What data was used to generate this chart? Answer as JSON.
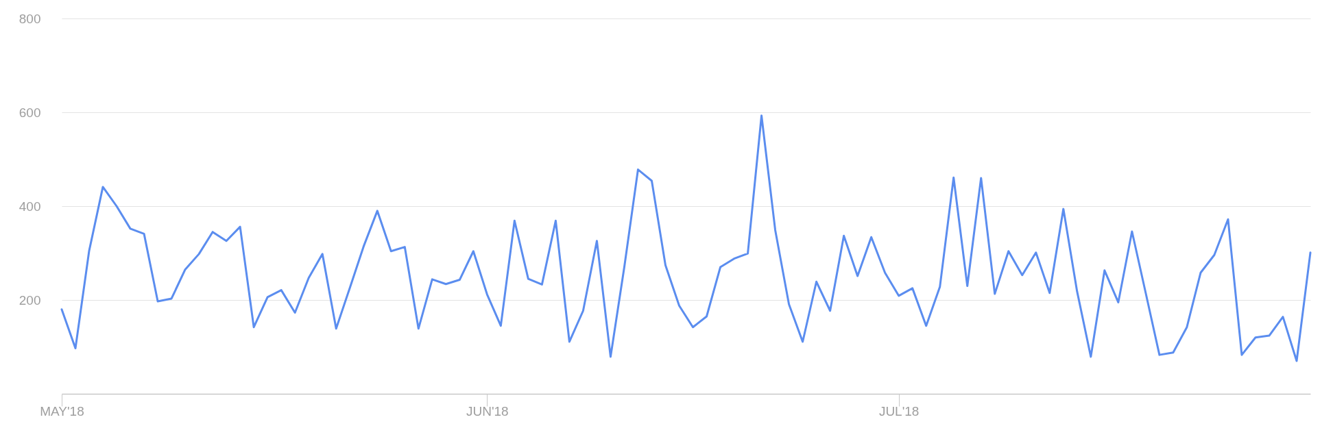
{
  "chart_data": {
    "type": "line",
    "x": [
      "2018-05-01",
      "2018-05-02",
      "2018-05-03",
      "2018-05-04",
      "2018-05-05",
      "2018-05-06",
      "2018-05-07",
      "2018-05-08",
      "2018-05-09",
      "2018-05-10",
      "2018-05-11",
      "2018-05-12",
      "2018-05-13",
      "2018-05-14",
      "2018-05-15",
      "2018-05-16",
      "2018-05-17",
      "2018-05-18",
      "2018-05-19",
      "2018-05-20",
      "2018-05-21",
      "2018-05-22",
      "2018-05-23",
      "2018-05-24",
      "2018-05-25",
      "2018-05-26",
      "2018-05-27",
      "2018-05-28",
      "2018-05-29",
      "2018-05-30",
      "2018-05-31",
      "2018-06-01",
      "2018-06-02",
      "2018-06-03",
      "2018-06-04",
      "2018-06-05",
      "2018-06-06",
      "2018-06-07",
      "2018-06-08",
      "2018-06-09",
      "2018-06-10",
      "2018-06-11",
      "2018-06-12",
      "2018-06-13",
      "2018-06-14",
      "2018-06-15",
      "2018-06-16",
      "2018-06-17",
      "2018-06-18",
      "2018-06-19",
      "2018-06-20",
      "2018-06-21",
      "2018-06-22",
      "2018-06-23",
      "2018-06-24",
      "2018-06-25",
      "2018-06-26",
      "2018-06-27",
      "2018-06-28",
      "2018-06-29",
      "2018-06-30",
      "2018-07-01",
      "2018-07-02",
      "2018-07-03",
      "2018-07-04",
      "2018-07-05",
      "2018-07-06",
      "2018-07-07",
      "2018-07-08",
      "2018-07-09",
      "2018-07-10",
      "2018-07-11",
      "2018-07-12",
      "2018-07-13",
      "2018-07-14",
      "2018-07-15",
      "2018-07-16",
      "2018-07-17",
      "2018-07-18",
      "2018-07-19",
      "2018-07-20",
      "2018-07-21",
      "2018-07-22",
      "2018-07-23",
      "2018-07-24",
      "2018-07-25",
      "2018-07-26",
      "2018-07-27",
      "2018-07-28",
      "2018-07-29",
      "2018-07-30",
      "2018-07-31"
    ],
    "series": [
      {
        "color": "#5b8def",
        "values": [
          180,
          97,
          305,
          441,
          400,
          352,
          341,
          197,
          203,
          265,
          298,
          345,
          326,
          356,
          142,
          206,
          221,
          173,
          247,
          298,
          139,
          226,
          314,
          390,
          304,
          313,
          139,
          244,
          234,
          243,
          304,
          212,
          145,
          369,
          245,
          233,
          369,
          111,
          177,
          326,
          79,
          270,
          478,
          454,
          274,
          188,
          142,
          165,
          270,
          288,
          299,
          593,
          349,
          191,
          111,
          239,
          177,
          337,
          251,
          334,
          258,
          209,
          225,
          145,
          228,
          461,
          230,
          460,
          213,
          304,
          253,
          301,
          215,
          394,
          218,
          79,
          263,
          195,
          346,
          215,
          83,
          88,
          142,
          258,
          296,
          372,
          83,
          120,
          124,
          164,
          70,
          301
        ]
      }
    ],
    "xlim": [
      "2018-05-01",
      "2018-07-31"
    ],
    "xticks": [
      {
        "value": "2018-05-01",
        "label": "MAY'18"
      },
      {
        "value": "2018-06-01",
        "label": "JUN'18"
      },
      {
        "value": "2018-07-01",
        "label": "JUL'18"
      }
    ],
    "ylim": [
      0,
      800
    ],
    "yticks": [
      200,
      400,
      600,
      800
    ],
    "grid": "y",
    "line_style": "solid"
  }
}
